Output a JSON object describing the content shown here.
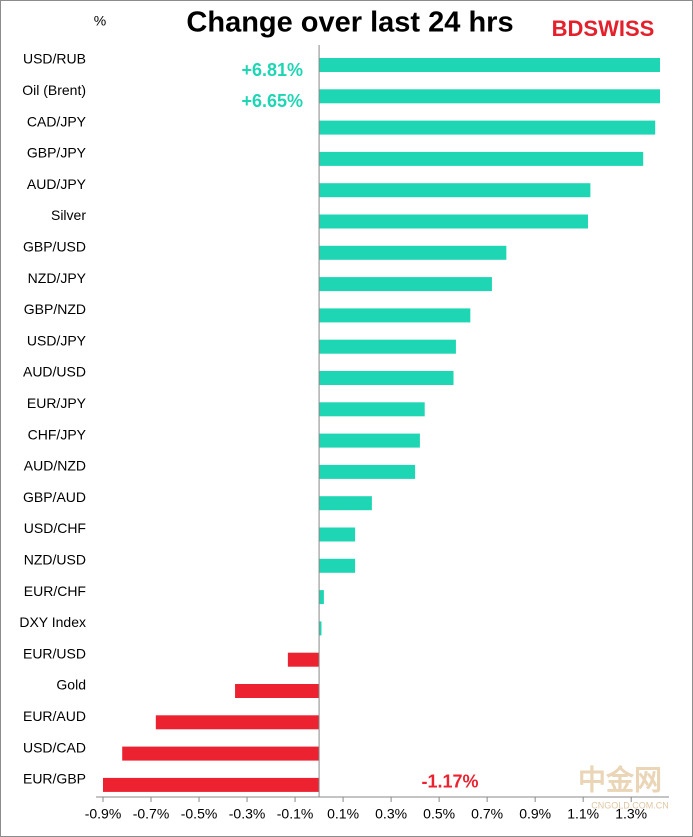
{
  "chart_data": {
    "type": "hbar",
    "title": "Change over last 24 hrs",
    "unit_label": "%",
    "logo": "BDSWISS",
    "watermark": "中金网",
    "watermark_url": "CNGOLD.COM.CN",
    "categories": [
      "USD/RUB",
      "Oil (Brent)",
      "CAD/JPY",
      "GBP/JPY",
      "AUD/JPY",
      "Silver",
      "GBP/USD",
      "NZD/JPY",
      "GBP/NZD",
      "USD/JPY",
      "AUD/USD",
      "EUR/JPY",
      "CHF/JPY",
      "AUD/NZD",
      "GBP/AUD",
      "USD/CHF",
      "NZD/USD",
      "EUR/CHF",
      "DXY Index",
      "EUR/USD",
      "Gold",
      "EUR/AUD",
      "USD/CAD",
      "EUR/GBP"
    ],
    "values": [
      6.81,
      6.65,
      1.4,
      1.35,
      1.13,
      1.12,
      0.78,
      0.72,
      0.63,
      0.57,
      0.56,
      0.44,
      0.42,
      0.4,
      0.22,
      0.15,
      0.15,
      0.02,
      0.01,
      -0.13,
      -0.35,
      -0.68,
      -0.82,
      -1.17
    ],
    "value_labels": [
      "+6.81%",
      "+6.65%",
      null,
      null,
      null,
      null,
      null,
      null,
      null,
      null,
      null,
      null,
      null,
      null,
      null,
      null,
      null,
      null,
      null,
      null,
      null,
      null,
      null,
      "-1.17%"
    ],
    "positive_color": "#1fd6b4",
    "negative_color": "#ec2231",
    "xlim": [
      -0.9,
      1.42
    ],
    "xticks": [
      {
        "value": -0.9,
        "label": "-0.9%"
      },
      {
        "value": -0.7,
        "label": "-0.7%"
      },
      {
        "value": -0.5,
        "label": "-0.5%"
      },
      {
        "value": -0.3,
        "label": "-0.3%"
      },
      {
        "value": -0.1,
        "label": "-0.1%"
      },
      {
        "value": 0.1,
        "label": "0.1%"
      },
      {
        "value": 0.3,
        "label": "0.3%"
      },
      {
        "value": 0.5,
        "label": "0.5%"
      },
      {
        "value": 0.7,
        "label": "0.7%"
      },
      {
        "value": 0.9,
        "label": "0.9%"
      },
      {
        "value": 1.1,
        "label": "1.1%"
      },
      {
        "value": 1.3,
        "label": "1.3%"
      }
    ]
  }
}
